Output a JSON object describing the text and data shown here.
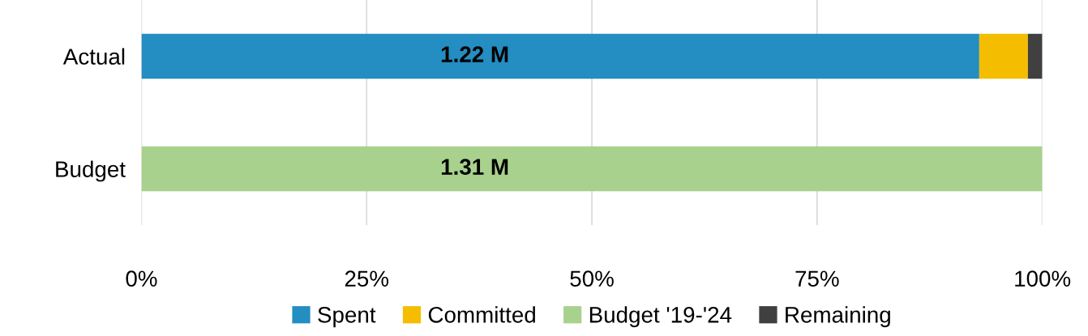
{
  "chart_data": {
    "type": "bar",
    "orientation": "horizontal",
    "stacked": true,
    "categories": [
      "Actual",
      "Budget"
    ],
    "series": [
      {
        "name": "Spent",
        "color": "#248dc1",
        "values": [
          93,
          null
        ]
      },
      {
        "name": "Committed",
        "color": "#f5bd00",
        "values": [
          5.4,
          null
        ]
      },
      {
        "name": "Budget '19-'24",
        "color": "#a9d18e",
        "values": [
          null,
          100
        ]
      },
      {
        "name": "Remaining",
        "color": "#404040",
        "values": [
          1.6,
          null
        ]
      }
    ],
    "xlim": [
      0,
      100
    ],
    "xticks": [
      {
        "value": 0,
        "label": "0%"
      },
      {
        "value": 25,
        "label": "25%"
      },
      {
        "value": 50,
        "label": "50%"
      },
      {
        "value": 75,
        "label": "75%"
      },
      {
        "value": 100,
        "label": "100%"
      }
    ],
    "annotations": [
      "1.22 M",
      "1.31 M"
    ],
    "grid": "x",
    "legend": "bottom"
  }
}
